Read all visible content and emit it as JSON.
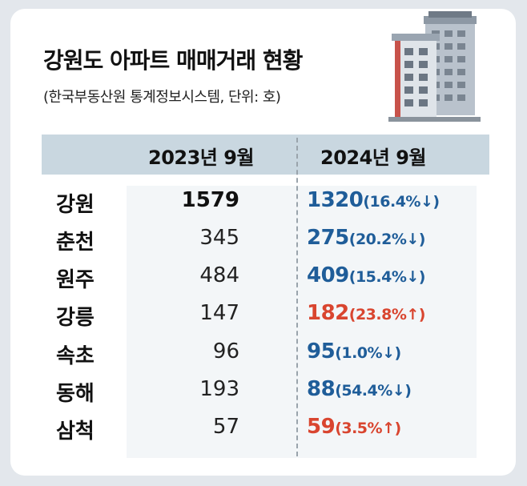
{
  "title": "강원도 아파트 매매거래 현황",
  "subtitle": "(한국부동산원 통계정보시스템, 단위: 호)",
  "chart_data": {
    "type": "table",
    "columns": [
      "2023년 9월",
      "2024년 9월"
    ],
    "rows": [
      {
        "region": "강원",
        "v2023": "1579",
        "v2024": "1320",
        "change": "(16.4%↓)",
        "direction": "down"
      },
      {
        "region": "춘천",
        "v2023": "345",
        "v2024": "275",
        "change": "(20.2%↓)",
        "direction": "down"
      },
      {
        "region": "원주",
        "v2023": "484",
        "v2024": "409",
        "change": "(15.4%↓)",
        "direction": "down"
      },
      {
        "region": "강릉",
        "v2023": "147",
        "v2024": "182",
        "change": "(23.8%↑)",
        "direction": "up"
      },
      {
        "region": "속초",
        "v2023": "96",
        "v2024": "95",
        "change": "(1.0%↓)",
        "direction": "down"
      },
      {
        "region": "동해",
        "v2023": "193",
        "v2024": "88",
        "change": "(54.4%↓)",
        "direction": "down"
      },
      {
        "region": "삼척",
        "v2023": "57",
        "v2024": "59",
        "change": "(3.5%↑)",
        "direction": "up"
      }
    ]
  },
  "colors": {
    "decrease": "#1f5d99",
    "increase": "#d9452f",
    "header_band": "#c9d7e0",
    "table_background": "#f3f6f8"
  },
  "icons": [
    "apartment-building-icon"
  ]
}
